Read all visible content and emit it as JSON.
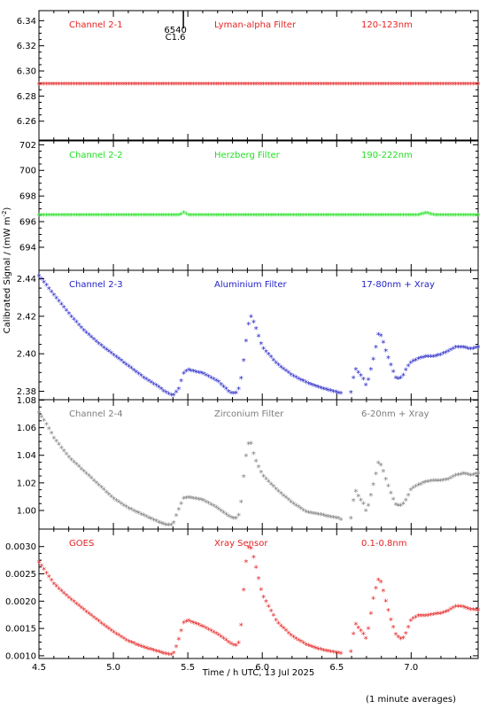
{
  "figure": {
    "ylabel": "Calibrated Signal / (mW m",
    "ylabel_sup": "-2",
    "ylabel_end": ")",
    "xlabel": "Time / h UTC, 13 Jul 2025",
    "note": "(1 minute averages)"
  },
  "flare_marker": {
    "x": 5.47,
    "label1": "6540",
    "label2": "C1.6"
  },
  "chart_data": [
    {
      "type": "scatter",
      "labels": [
        "Channel 2-1",
        "Lyman-alpha Filter",
        "120-123nm"
      ],
      "color": "#e52222",
      "xlim": [
        4.5,
        7.45
      ],
      "ylim": [
        6.245,
        6.348
      ],
      "yticks": [
        6.26,
        6.28,
        6.3,
        6.32,
        6.34
      ],
      "ytick_labels": [
        "6.26",
        "6.28",
        "6.30",
        "6.32",
        "6.34"
      ],
      "x": [
        4.5,
        7.45
      ],
      "y": [
        6.289,
        6.289
      ]
    },
    {
      "type": "scatter",
      "labels": [
        "Channel 2-2",
        "Herzberg Filter",
        "190-222nm"
      ],
      "color": "#22e022",
      "xlim": [
        4.5,
        7.45
      ],
      "ylim": [
        692.2,
        702.3
      ],
      "yticks": [
        694,
        696,
        698,
        700,
        702
      ],
      "ytick_labels": [
        "694",
        "696",
        "698",
        "700",
        "702"
      ],
      "x": [
        4.5,
        5.45,
        5.47,
        5.5,
        7.05,
        7.1,
        7.15,
        7.45
      ],
      "y": [
        696.45,
        696.45,
        696.65,
        696.45,
        696.45,
        696.6,
        696.45,
        696.45
      ]
    },
    {
      "type": "scatter",
      "labels": [
        "Channel 2-3",
        "Aluminium Filter",
        "17-80nm + Xray"
      ],
      "color": "#2222c8",
      "xlim": [
        4.5,
        7.45
      ],
      "ylim": [
        2.3755,
        2.4445
      ],
      "yticks": [
        2.38,
        2.4,
        2.42,
        2.44
      ],
      "ytick_labels": [
        "2.38",
        "2.40",
        "2.42",
        "2.44"
      ],
      "x": [
        4.5,
        4.55,
        4.6,
        4.7,
        4.8,
        4.9,
        5.0,
        5.1,
        5.2,
        5.3,
        5.35,
        5.4,
        5.44,
        5.47,
        5.5,
        5.6,
        5.7,
        5.78,
        5.82,
        5.85,
        5.88,
        5.9,
        5.92,
        5.95,
        6.0,
        6.1,
        6.2,
        6.3,
        6.4,
        6.5,
        6.55,
        6.6,
        6.62,
        6.65,
        6.68,
        6.7,
        6.72,
        6.75,
        6.78,
        6.8,
        6.83,
        6.87,
        6.9,
        6.94,
        6.97,
        7.0,
        7.05,
        7.1,
        7.15,
        7.2,
        7.25,
        7.3,
        7.35,
        7.4,
        7.45
      ],
      "y": [
        2.441,
        2.436,
        2.431,
        2.421,
        2.412,
        2.405,
        2.399,
        2.393,
        2.387,
        2.382,
        2.379,
        2.377,
        2.381,
        2.389,
        2.391,
        2.389,
        2.385,
        2.379,
        2.378,
        2.382,
        2.399,
        2.412,
        2.42,
        2.415,
        2.403,
        2.394,
        2.388,
        2.384,
        2.381,
        2.379,
        2.378,
        2.379,
        2.392,
        2.389,
        2.386,
        2.382,
        2.388,
        2.398,
        2.41,
        2.409,
        2.401,
        2.392,
        2.386,
        2.387,
        2.392,
        2.395,
        2.397,
        2.398,
        2.398,
        2.399,
        2.401,
        2.403,
        2.403,
        2.402,
        2.403
      ]
    },
    {
      "type": "scatter",
      "labels": [
        "Channel 2-4",
        "Zirconium Filter",
        "6-20nm + Xray"
      ],
      "color": "#7c7c7c",
      "xlim": [
        4.5,
        7.45
      ],
      "ylim": [
        0.9865,
        1.0803
      ],
      "yticks": [
        1.0,
        1.02,
        1.04,
        1.06,
        1.08
      ],
      "ytick_labels": [
        "1.00",
        "1.02",
        "1.04",
        "1.06",
        "1.08"
      ],
      "x": [
        4.5,
        4.55,
        4.6,
        4.7,
        4.8,
        4.9,
        5.0,
        5.1,
        5.2,
        5.3,
        5.35,
        5.4,
        5.43,
        5.47,
        5.5,
        5.6,
        5.7,
        5.78,
        5.82,
        5.85,
        5.88,
        5.9,
        5.92,
        5.95,
        6.0,
        6.1,
        6.2,
        6.3,
        6.4,
        6.5,
        6.55,
        6.6,
        6.62,
        6.65,
        6.68,
        6.7,
        6.72,
        6.75,
        6.78,
        6.8,
        6.83,
        6.87,
        6.9,
        6.94,
        6.97,
        7.0,
        7.05,
        7.1,
        7.15,
        7.2,
        7.25,
        7.3,
        7.35,
        7.4,
        7.45
      ],
      "y": [
        1.07,
        1.062,
        1.052,
        1.038,
        1.028,
        1.018,
        1.008,
        1.001,
        0.996,
        0.991,
        0.989,
        0.989,
        0.998,
        1.008,
        1.009,
        1.007,
        1.001,
        0.995,
        0.993,
        0.997,
        1.03,
        1.046,
        1.05,
        1.037,
        1.025,
        1.014,
        1.005,
        0.998,
        0.996,
        0.994,
        0.992,
        0.994,
        1.015,
        1.009,
        1.004,
        0.998,
        1.006,
        1.02,
        1.034,
        1.032,
        1.022,
        1.01,
        1.003,
        1.003,
        1.008,
        1.015,
        1.018,
        1.02,
        1.021,
        1.021,
        1.022,
        1.025,
        1.026,
        1.025,
        1.026
      ]
    },
    {
      "type": "scatter",
      "labels": [
        "GOES",
        "Xray Sensor",
        "0.1-0.8nm"
      ],
      "color": "#e52222",
      "xlim": [
        4.5,
        7.45
      ],
      "ylim": [
        0.00095,
        0.00332
      ],
      "yticks": [
        0.001,
        0.0015,
        0.002,
        0.0025,
        0.003
      ],
      "ytick_labels": [
        "0.0010",
        "0.0015",
        "0.0020",
        "0.0025",
        "0.0030"
      ],
      "x": [
        4.5,
        4.55,
        4.6,
        4.7,
        4.8,
        4.9,
        5.0,
        5.1,
        5.2,
        5.3,
        5.35,
        5.4,
        5.43,
        5.47,
        5.5,
        5.6,
        5.7,
        5.78,
        5.82,
        5.85,
        5.88,
        5.9,
        5.92,
        5.95,
        6.0,
        6.1,
        6.2,
        6.3,
        6.4,
        6.5,
        6.55,
        6.6,
        6.62,
        6.65,
        6.68,
        6.7,
        6.72,
        6.75,
        6.78,
        6.8,
        6.83,
        6.87,
        6.9,
        6.94,
        6.97,
        7.0,
        7.05,
        7.1,
        7.15,
        7.2,
        7.25,
        7.3,
        7.35,
        7.4,
        7.45
      ],
      "y": [
        0.0027,
        0.0025,
        0.0023,
        0.00205,
        0.00183,
        0.00162,
        0.00142,
        0.00125,
        0.00114,
        0.00106,
        0.00102,
        0.001,
        0.0012,
        0.00158,
        0.00163,
        0.00152,
        0.00138,
        0.00122,
        0.00116,
        0.00125,
        0.0024,
        0.00295,
        0.003,
        0.0027,
        0.0021,
        0.0016,
        0.00134,
        0.00118,
        0.00109,
        0.00104,
        0.00102,
        0.00106,
        0.0016,
        0.00148,
        0.00138,
        0.00128,
        0.0016,
        0.0021,
        0.00238,
        0.00232,
        0.00198,
        0.00158,
        0.00135,
        0.00128,
        0.00142,
        0.00165,
        0.00172,
        0.00172,
        0.00174,
        0.00176,
        0.00181,
        0.00189,
        0.00188,
        0.00183,
        0.00182
      ]
    }
  ]
}
